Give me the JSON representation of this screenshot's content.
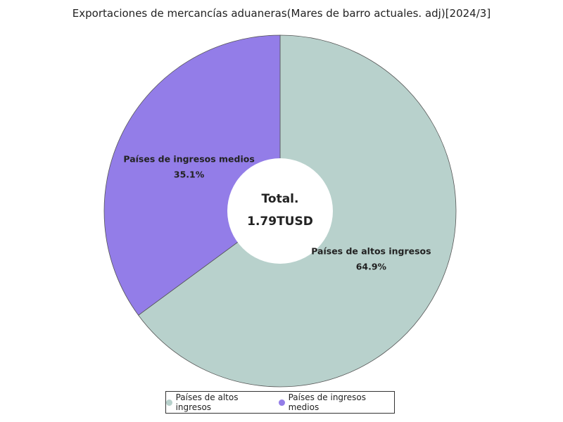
{
  "chart_data": {
    "type": "pie",
    "title": "Exportaciones de mercancías aduaneras(Mares de barro actuales. adj)[2024/3]",
    "center_label": {
      "title": "Total.",
      "value": "1.79TUSD"
    },
    "slices": [
      {
        "name": "Países de altos ingresos",
        "value": 64.9,
        "label": "64.9%",
        "color": "#b8d1cc"
      },
      {
        "name": "Países de ingresos medios",
        "value": 35.1,
        "label": "35.1%",
        "color": "#937de8"
      }
    ],
    "legend": {
      "placement": "bottom",
      "entries": [
        "Países de altos ingresos",
        "Países de ingresos medios"
      ]
    }
  }
}
